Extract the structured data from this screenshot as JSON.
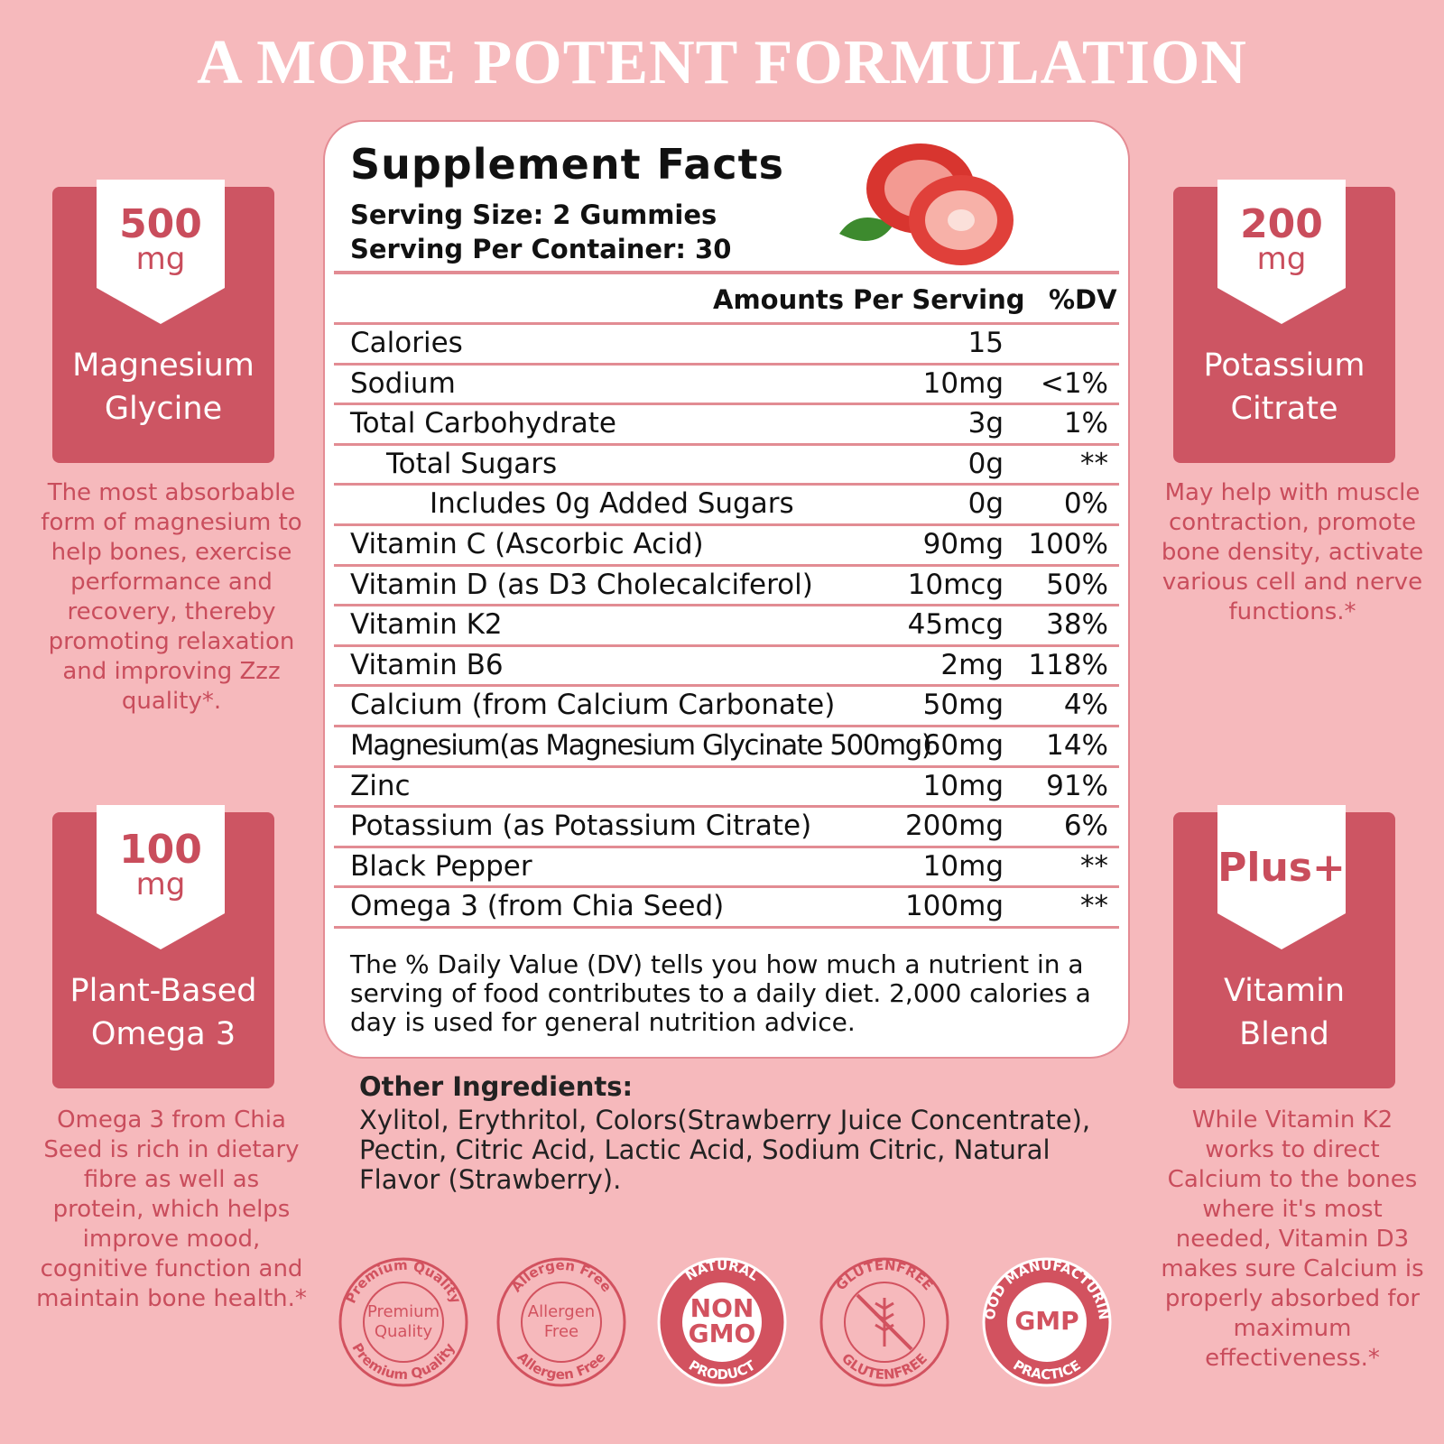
{
  "header": {
    "title": "A MORE POTENT FORMULATION"
  },
  "features": [
    {
      "badge": "500",
      "unit": "mg",
      "name": "Magnesium Glycine",
      "description": "The most absorbable form of magnesium to help bones, exercise performance and recovery, thereby promoting relaxation and improving Zzz quality*."
    },
    {
      "badge": "200",
      "unit": "mg",
      "name": "Potassium Citrate",
      "description": "May help with muscle contraction, promote bone density, activate various cell and nerve functions.*"
    },
    {
      "badge": "100",
      "unit": "mg",
      "name": "Plant-Based Omega 3",
      "description": "Omega 3 from Chia Seed is rich in dietary fibre as well as protein, which helps improve mood, cognitive function and maintain bone health.*"
    },
    {
      "badge": "Plus+",
      "name": "Vitamin Blend",
      "description": "While Vitamin K2 works to direct Calcium to the bones where it's most needed, Vitamin D3 makes sure Calcium is properly absorbed for maximum effectiveness.*"
    }
  ],
  "facts": {
    "title": "Supplement Facts",
    "serving_size": "Serving Size: 2 Gummies",
    "servings": "Serving Per Container: 30",
    "amount_header": "Amounts Per Serving",
    "dv_header": "%DV",
    "rows": [
      [
        "Calories",
        "15"
      ],
      [
        "Sodium",
        "10mg",
        "<1%"
      ],
      [
        "Total Carbohydrate",
        "3g",
        "1%"
      ],
      [
        "Total Sugars",
        "0g",
        "**"
      ],
      [
        "Includes 0g Added Sugars",
        "0g",
        "0%"
      ],
      [
        "Vitamin C  (Ascorbic Acid)",
        "90mg",
        "100%"
      ],
      [
        "Vitamin D (as D3 Cholecalciferol)",
        "10mcg",
        "50%"
      ],
      [
        "Vitamin K2",
        "45mcg",
        "38%"
      ],
      [
        "Vitamin B6",
        "2mg",
        "118%"
      ],
      [
        "Calcium (from Calcium Carbonate)",
        "50mg",
        "4%"
      ],
      [
        "Magnesium(as Magnesium Glycinate 500mg)",
        "60mg",
        "14%"
      ],
      [
        "Zinc",
        "10mg",
        "91%"
      ],
      [
        "Potassium (as Potassium Citrate)",
        "200mg",
        "6%"
      ],
      [
        "Black Pepper",
        "10mg",
        "**"
      ],
      [
        "Omega 3 (from Chia Seed)",
        "100mg",
        "**"
      ]
    ],
    "footnote": "The % Daily Value (DV) tells you how much a nutrient in a serving of food contributes to a daily diet. 2,000 calories a day is used for general nutrition advice."
  },
  "other_ingredients": {
    "heading": "Other Ingredients:",
    "text": "Xylitol, Erythritol, Colors(Strawberry Juice Concentrate), Pectin, Citric Acid, Lactic Acid, Sodium Citric, Natural Flavor (Strawberry)."
  },
  "badges": [
    {
      "ring_top": "Premium Quality",
      "ring_bottom": "Premium Quality",
      "center": [
        "Premium",
        "Quality"
      ]
    },
    {
      "ring_top": "Allergen Free",
      "ring_bottom": "Allergen Free",
      "center": [
        "Allergen",
        "Free"
      ]
    },
    {
      "ring_top": "NATURAL",
      "ring_bottom": "PRODUCT",
      "center": [
        "NON",
        "GMO"
      ]
    },
    {
      "ring_top": "GLUTENFREE",
      "ring_bottom": "GLUTENFREE"
    },
    {
      "ring_top": "GOOD MANUFACTURING",
      "ring_bottom": "PRACTICE",
      "center": [
        "GMP"
      ]
    }
  ]
}
